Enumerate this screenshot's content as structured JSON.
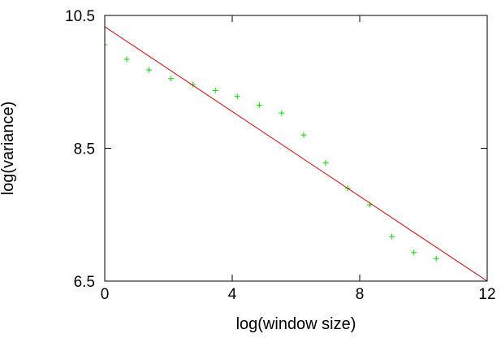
{
  "chart_data": {
    "type": "scatter",
    "title": "",
    "xlabel": "log(window size)",
    "ylabel": "log(variance)",
    "xlim": [
      0,
      12
    ],
    "ylim": [
      6.5,
      10.5
    ],
    "x_ticks": [
      0,
      4,
      8,
      12
    ],
    "x_tick_labels": [
      "0",
      "4",
      "8",
      "12"
    ],
    "y_ticks": [
      6.5,
      8.5,
      10.5
    ],
    "y_tick_labels": [
      "6.5",
      "8.5",
      "10.5"
    ],
    "grid": false,
    "legend": "none",
    "series": [
      {
        "kind": "points",
        "marker": "+",
        "color": "#00dd00",
        "x": [
          0,
          0.69,
          1.39,
          2.08,
          2.77,
          3.47,
          4.16,
          4.85,
          5.55,
          6.24,
          6.93,
          7.62,
          8.32,
          9.01,
          9.7,
          10.4
        ],
        "y": [
          10.06,
          9.84,
          9.68,
          9.55,
          9.46,
          9.37,
          9.28,
          9.15,
          9.03,
          8.7,
          8.28,
          7.9,
          7.65,
          7.17,
          6.93,
          6.84
        ]
      },
      {
        "kind": "line",
        "color": "#e00000",
        "x": [
          0,
          12
        ],
        "y": [
          10.33,
          6.5
        ]
      }
    ]
  }
}
